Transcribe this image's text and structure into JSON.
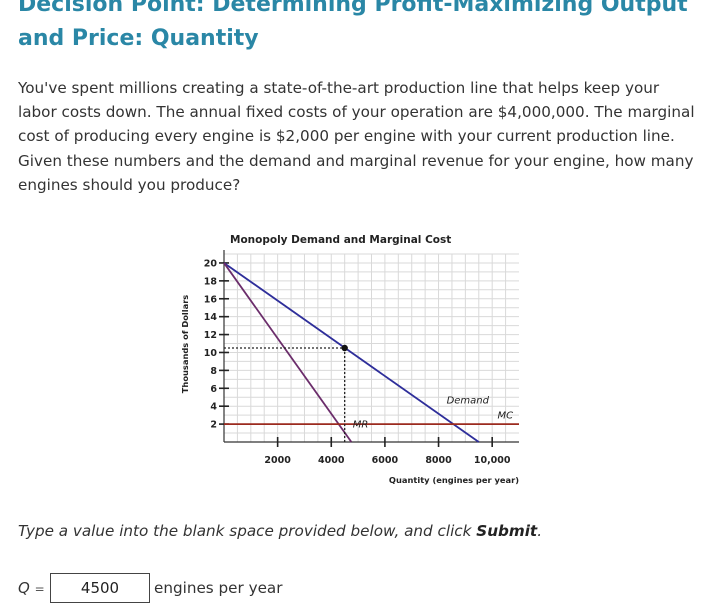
{
  "page": {
    "title": "Decision Point: Determining Profit-Maximizing Output and Price: Quantity",
    "prompt": "You've spent millions creating a state-of-the-art production line that helps keep your labor costs down. The annual fixed costs of your operation are $4,000,000. The marginal cost of producing every engine is $2,000 per engine with your current production line. Given these numbers and the demand and marginal revenue for your engine, how many engines should you produce?",
    "instruction_prefix": "Type a value into the blank space provided below, and click ",
    "instruction_action": "Submit",
    "instruction_suffix": "."
  },
  "answer": {
    "variable": "Q",
    "equals": "=",
    "value": "4500",
    "unit": "engines per year"
  },
  "chart_data": {
    "type": "line",
    "title": "Monopoly Demand and Marginal Cost",
    "xlabel": "Quantity (engines per year)",
    "ylabel": "Thousands of Dollars",
    "xlim": [
      0,
      11000
    ],
    "ylim": [
      0,
      21
    ],
    "x_ticks": [
      2000,
      4000,
      6000,
      8000,
      10000
    ],
    "x_tick_labels": [
      "2000",
      "4000",
      "6000",
      "8000",
      "10,000"
    ],
    "y_ticks": [
      2,
      4,
      6,
      8,
      10,
      12,
      14,
      16,
      18,
      20
    ],
    "y_tick_labels": [
      "2",
      "4",
      "6",
      "8",
      "10",
      "12",
      "14",
      "16",
      "18",
      "20"
    ],
    "grid": true,
    "series": [
      {
        "name": "Demand",
        "x": [
          0,
          9500
        ],
        "y": [
          20,
          0
        ],
        "color": "#2e2e9a"
      },
      {
        "name": "MR",
        "x": [
          0,
          4750
        ],
        "y": [
          20,
          0
        ],
        "color": "#6b2d6b"
      },
      {
        "name": "MC",
        "x": [
          0,
          11000
        ],
        "y": [
          2,
          2
        ],
        "color": "#9b2a1e"
      }
    ],
    "point": {
      "x": 4500,
      "y": 10.5
    },
    "annotations": [
      {
        "text": "Demand",
        "x": 8300,
        "y": 4.3
      },
      {
        "text": "MR",
        "x": 4800,
        "y": 1.6
      },
      {
        "text": "MC",
        "x": 10200,
        "y": 2.6
      }
    ]
  }
}
